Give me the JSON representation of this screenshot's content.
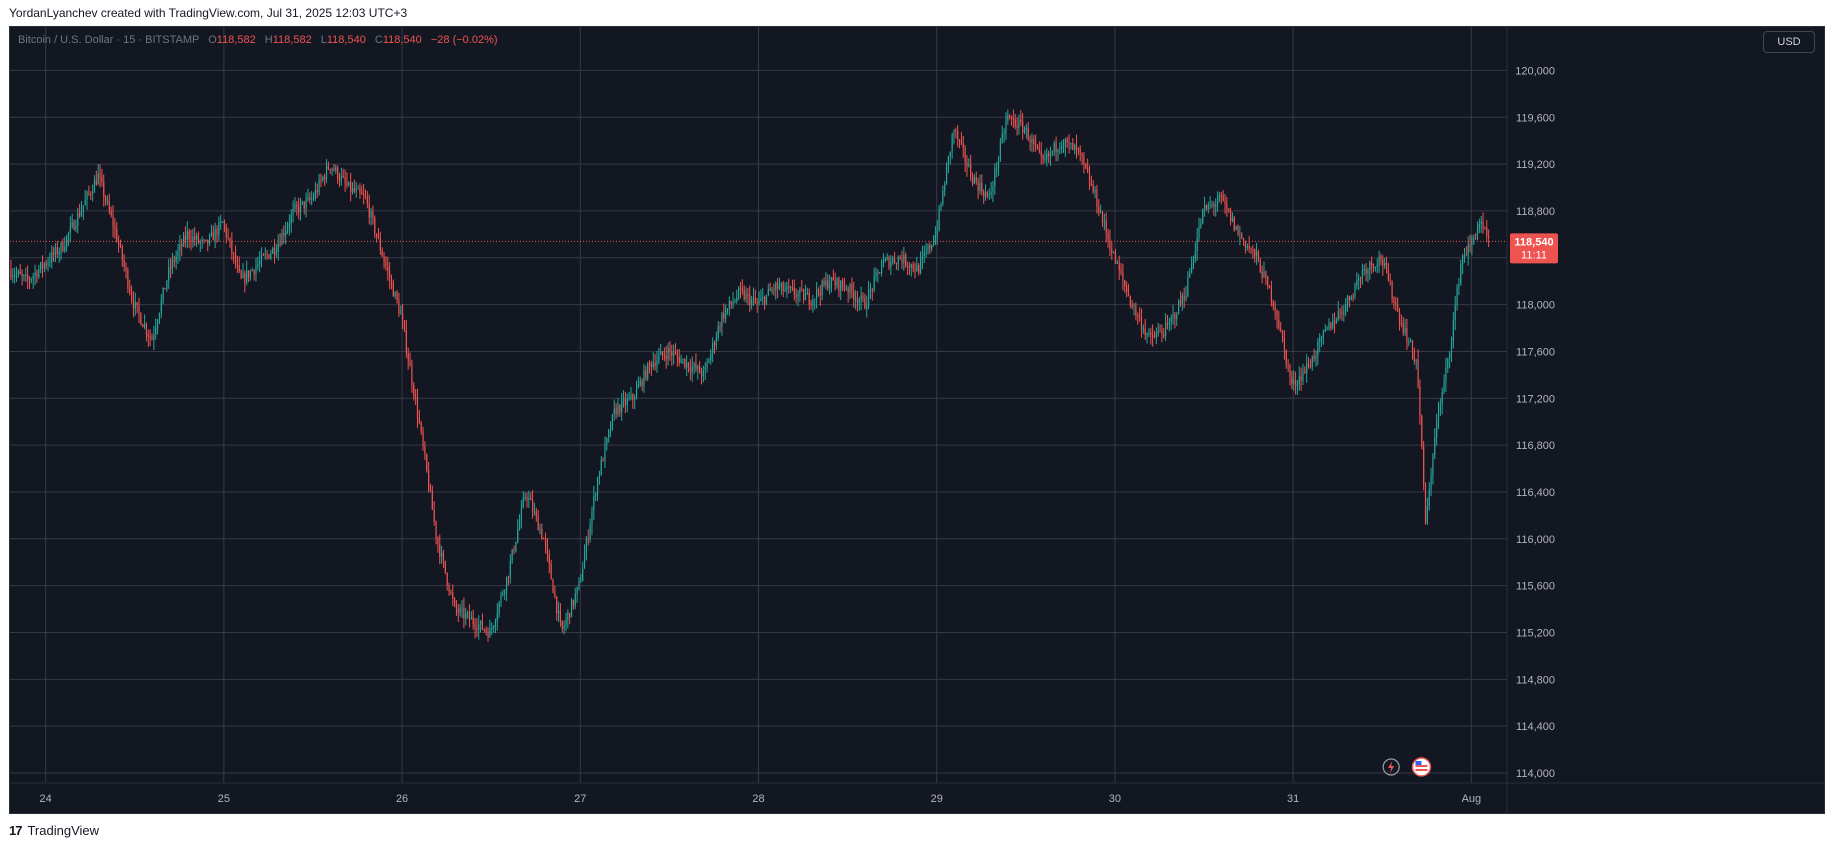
{
  "caption": "YordanLyanchev created with TradingView.com, Jul 31, 2025 12:03 UTC+3",
  "footer": {
    "logo_text": "TradingView",
    "logo_mark": "17"
  },
  "currency_button": "USD",
  "legend": {
    "symbol": "Bitcoin / U.S. Dollar · 15 · BITSTAMP",
    "o_label": "O",
    "o_value": "118,582",
    "h_label": "H",
    "h_value": "118,582",
    "l_label": "L",
    "l_value": "118,540",
    "c_label": "C",
    "c_value": "118,540",
    "change": "−28 (−0.02%)"
  },
  "last_price": {
    "price": "118,540",
    "countdown": "11:11",
    "value": 118540
  },
  "colors": {
    "background": "#131722",
    "grid": "#363a45",
    "up": "#26a69a",
    "down": "#ef5350",
    "axis_text": "#b2b5be"
  },
  "icons": [
    "lightning-icon",
    "us-flag-icon"
  ],
  "chart_data": {
    "type": "candlestick",
    "ylim": [
      114000,
      120200
    ],
    "y_ticks": [
      114000,
      114400,
      114800,
      115200,
      115600,
      116000,
      116400,
      116800,
      117200,
      117600,
      118000,
      118400,
      118800,
      119200,
      119600,
      120000
    ],
    "y_tick_labels": [
      "114,000",
      "114,400",
      "114,800",
      "115,200",
      "115,600",
      "116,000",
      "116,400",
      "116,800",
      "117,200",
      "117,600",
      "118,000",
      "118,400",
      "118,800",
      "119,200",
      "119,600",
      "120,000"
    ],
    "x_range": [
      23.8,
      32.2
    ],
    "x_ticks": [
      24,
      25,
      26,
      27,
      28,
      29,
      30,
      31,
      32
    ],
    "x_tick_labels": [
      "24",
      "25",
      "26",
      "27",
      "28",
      "29",
      "30",
      "31",
      "Aug"
    ],
    "grid": true,
    "price_path": [
      [
        23.8,
        118300
      ],
      [
        23.9,
        118200
      ],
      [
        24.0,
        118350
      ],
      [
        24.1,
        118500
      ],
      [
        24.2,
        118800
      ],
      [
        24.3,
        119100
      ],
      [
        24.4,
        118600
      ],
      [
        24.5,
        118000
      ],
      [
        24.6,
        117700
      ],
      [
        24.7,
        118300
      ],
      [
        24.8,
        118600
      ],
      [
        24.9,
        118500
      ],
      [
        25.0,
        118700
      ],
      [
        25.1,
        118200
      ],
      [
        25.2,
        118350
      ],
      [
        25.3,
        118500
      ],
      [
        25.4,
        118800
      ],
      [
        25.5,
        118900
      ],
      [
        25.6,
        119200
      ],
      [
        25.7,
        119000
      ],
      [
        25.8,
        118900
      ],
      [
        25.9,
        118400
      ],
      [
        26.0,
        117900
      ],
      [
        26.1,
        117000
      ],
      [
        26.2,
        116000
      ],
      [
        26.3,
        115400
      ],
      [
        26.4,
        115300
      ],
      [
        26.5,
        115200
      ],
      [
        26.6,
        115700
      ],
      [
        26.7,
        116400
      ],
      [
        26.8,
        116000
      ],
      [
        26.9,
        115200
      ],
      [
        27.0,
        115600
      ],
      [
        27.1,
        116500
      ],
      [
        27.2,
        117100
      ],
      [
        27.3,
        117200
      ],
      [
        27.4,
        117500
      ],
      [
        27.5,
        117600
      ],
      [
        27.6,
        117500
      ],
      [
        27.7,
        117400
      ],
      [
        27.8,
        117900
      ],
      [
        27.9,
        118100
      ],
      [
        28.0,
        118000
      ],
      [
        28.1,
        118150
      ],
      [
        28.2,
        118100
      ],
      [
        28.3,
        118050
      ],
      [
        28.4,
        118200
      ],
      [
        28.5,
        118150
      ],
      [
        28.6,
        118000
      ],
      [
        28.7,
        118350
      ],
      [
        28.8,
        118400
      ],
      [
        28.9,
        118300
      ],
      [
        29.0,
        118600
      ],
      [
        29.1,
        119500
      ],
      [
        29.2,
        119100
      ],
      [
        29.3,
        118900
      ],
      [
        29.4,
        119600
      ],
      [
        29.5,
        119500
      ],
      [
        29.6,
        119200
      ],
      [
        29.7,
        119400
      ],
      [
        29.8,
        119300
      ],
      [
        29.9,
        118900
      ],
      [
        30.0,
        118400
      ],
      [
        30.1,
        118000
      ],
      [
        30.2,
        117700
      ],
      [
        30.3,
        117800
      ],
      [
        30.4,
        118100
      ],
      [
        30.5,
        118800
      ],
      [
        30.6,
        118900
      ],
      [
        30.7,
        118600
      ],
      [
        30.8,
        118400
      ],
      [
        30.9,
        118000
      ],
      [
        31.0,
        117300
      ],
      [
        31.1,
        117500
      ],
      [
        31.2,
        117800
      ],
      [
        31.3,
        118000
      ],
      [
        31.4,
        118300
      ],
      [
        31.5,
        118400
      ],
      [
        31.6,
        117900
      ],
      [
        31.7,
        117500
      ],
      [
        31.75,
        116100
      ],
      [
        31.8,
        116900
      ],
      [
        31.85,
        117300
      ],
      [
        31.9,
        117800
      ],
      [
        31.95,
        118400
      ],
      [
        32.0,
        118500
      ],
      [
        32.05,
        118700
      ],
      [
        32.1,
        118540
      ]
    ]
  }
}
